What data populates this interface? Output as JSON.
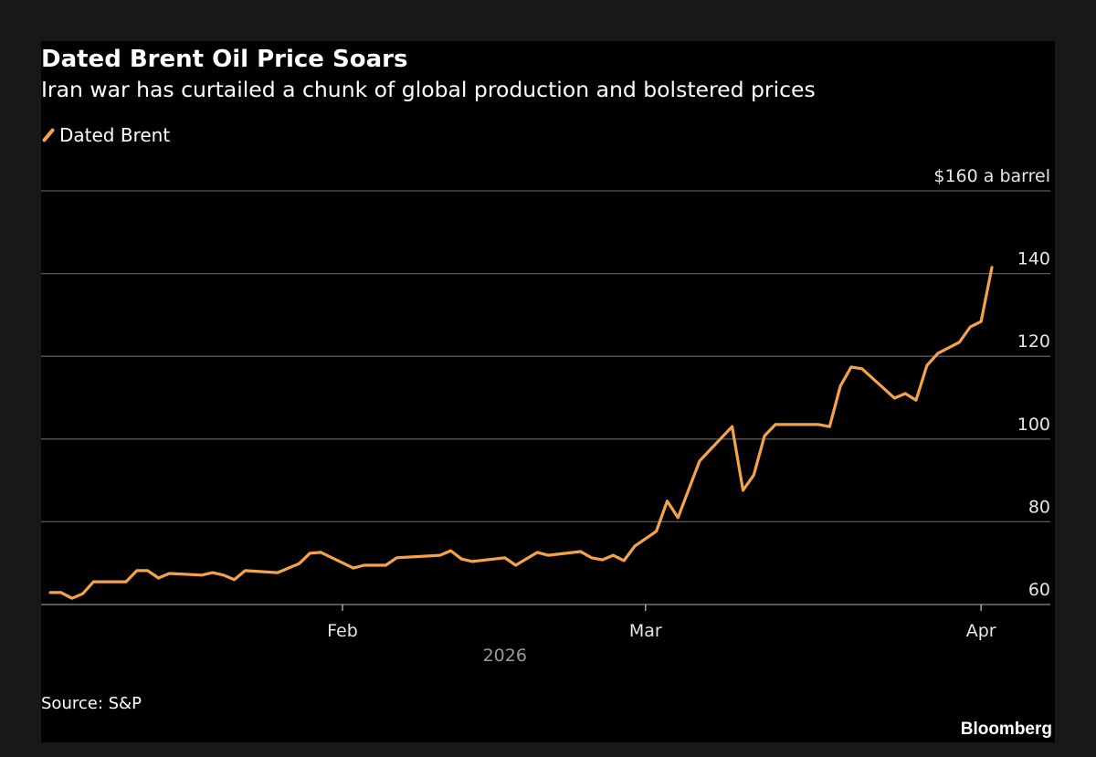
{
  "chart_data": {
    "type": "line",
    "title": "Dated Brent Oil Price Soars",
    "subtitle": "Iran war has curtailed a chunk of global production and bolstered prices",
    "source": "Source: S&P",
    "brand": "Bloomberg",
    "legend_position": "top-left",
    "grid": true,
    "xlabel": "2026",
    "ylabel": "",
    "y_unit_label": "$160 a barrel",
    "ylim": [
      60,
      160
    ],
    "yticks": [
      60,
      80,
      100,
      120,
      140,
      160
    ],
    "ytick_labels": [
      "60",
      "80",
      "100",
      "120",
      "140",
      "$160 a barrel"
    ],
    "xlim": [
      "2026-01-01",
      "2026-04-06"
    ],
    "xticks": [
      {
        "date": "2026-02-01",
        "label": "Feb"
      },
      {
        "date": "2026-03-01",
        "label": "Mar"
      },
      {
        "date": "2026-04-01",
        "label": "Apr"
      }
    ],
    "colors": {
      "series": "#f5a34b",
      "background": "#000000",
      "grid": "#5a5a5a"
    },
    "series": [
      {
        "name": "Dated Brent",
        "points": [
          [
            "2026-01-05",
            62.9
          ],
          [
            "2026-01-06",
            62.9
          ],
          [
            "2026-01-07",
            61.5
          ],
          [
            "2026-01-08",
            62.6
          ],
          [
            "2026-01-09",
            65.5
          ],
          [
            "2026-01-12",
            65.5
          ],
          [
            "2026-01-13",
            68.2
          ],
          [
            "2026-01-14",
            68.2
          ],
          [
            "2026-01-15",
            66.4
          ],
          [
            "2026-01-16",
            67.5
          ],
          [
            "2026-01-19",
            67.1
          ],
          [
            "2026-01-20",
            67.7
          ],
          [
            "2026-01-21",
            67.1
          ],
          [
            "2026-01-22",
            66.0
          ],
          [
            "2026-01-23",
            68.2
          ],
          [
            "2026-01-26",
            67.7
          ],
          [
            "2026-01-27",
            68.8
          ],
          [
            "2026-01-28",
            69.9
          ],
          [
            "2026-01-29",
            72.4
          ],
          [
            "2026-01-30",
            72.6
          ],
          [
            "2026-02-02",
            68.8
          ],
          [
            "2026-02-03",
            69.5
          ],
          [
            "2026-02-05",
            69.5
          ],
          [
            "2026-02-06",
            71.3
          ],
          [
            "2026-02-10",
            71.9
          ],
          [
            "2026-02-11",
            73.0
          ],
          [
            "2026-02-12",
            71.0
          ],
          [
            "2026-02-13",
            70.4
          ],
          [
            "2026-02-16",
            71.3
          ],
          [
            "2026-02-17",
            69.5
          ],
          [
            "2026-02-19",
            72.6
          ],
          [
            "2026-02-20",
            71.9
          ],
          [
            "2026-02-23",
            72.8
          ],
          [
            "2026-02-24",
            71.3
          ],
          [
            "2026-02-25",
            70.8
          ],
          [
            "2026-02-26",
            71.9
          ],
          [
            "2026-02-27",
            70.6
          ],
          [
            "2026-02-28",
            74.1
          ],
          [
            "2026-03-02",
            77.7
          ],
          [
            "2026-03-03",
            85.0
          ],
          [
            "2026-03-04",
            81.0
          ],
          [
            "2026-03-06",
            94.7
          ],
          [
            "2026-03-07",
            97.5
          ],
          [
            "2026-03-09",
            103.0
          ],
          [
            "2026-03-10",
            87.6
          ],
          [
            "2026-03-11",
            91.3
          ],
          [
            "2026-03-12",
            100.8
          ],
          [
            "2026-03-13",
            103.5
          ],
          [
            "2026-03-17",
            103.5
          ],
          [
            "2026-03-18",
            103.0
          ],
          [
            "2026-03-19",
            112.8
          ],
          [
            "2026-03-20",
            117.4
          ],
          [
            "2026-03-21",
            117.0
          ],
          [
            "2026-03-24",
            109.9
          ],
          [
            "2026-03-25",
            111.0
          ],
          [
            "2026-03-26",
            109.4
          ],
          [
            "2026-03-27",
            117.8
          ],
          [
            "2026-03-28",
            120.7
          ],
          [
            "2026-03-30",
            123.4
          ],
          [
            "2026-03-31",
            127.1
          ],
          [
            "2026-04-01",
            128.4
          ],
          [
            "2026-04-02",
            141.5
          ]
        ]
      }
    ]
  }
}
